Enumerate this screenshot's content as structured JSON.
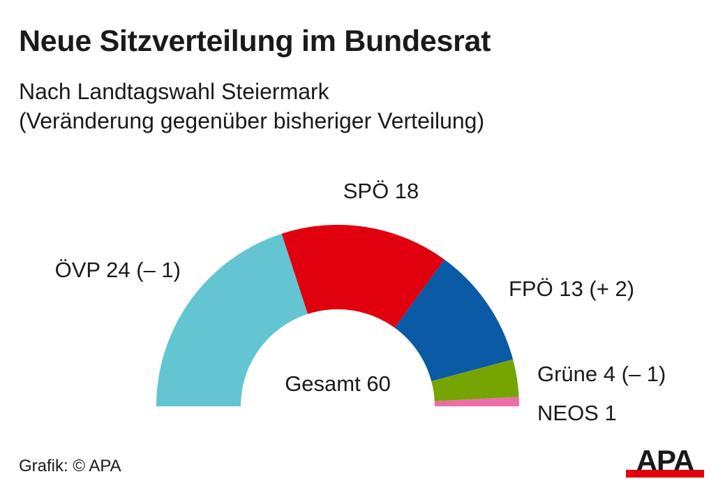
{
  "title": "Neue Sitzverteilung im Bundesrat",
  "subtitle_line1": "Nach Landtagswahl Steiermark",
  "subtitle_line2": "(Veränderung gegenüber bisheriger Verteilung)",
  "source": "Grafik: © APA",
  "logo_text": "APA",
  "chart_data": {
    "type": "pie",
    "subtype": "parliament-semicircle",
    "title": "Neue Sitzverteilung im Bundesrat",
    "center_label": "Gesamt 60",
    "total": 60,
    "segments": [
      {
        "name": "ÖVP",
        "seats": 24,
        "change": -1,
        "label": "ÖVP 24 (– 1)",
        "color": "#62c5d1"
      },
      {
        "name": "SPÖ",
        "seats": 18,
        "change": 0,
        "label": "SPÖ 18",
        "color": "#e0000e"
      },
      {
        "name": "FPÖ",
        "seats": 13,
        "change": 2,
        "label": "FPÖ 13 (+ 2)",
        "color": "#0a5aa6"
      },
      {
        "name": "Grüne",
        "seats": 4,
        "change": -1,
        "label": "Grüne 4 (– 1)",
        "color": "#76a501"
      },
      {
        "name": "NEOS",
        "seats": 1,
        "change": 0,
        "label": "NEOS 1",
        "color": "#ec6ea7"
      }
    ]
  }
}
